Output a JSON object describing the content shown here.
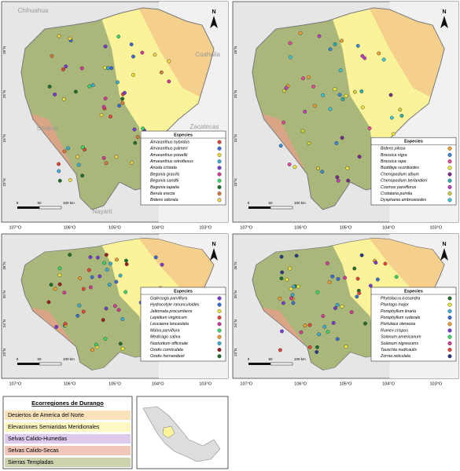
{
  "map_labels": {
    "states": [
      "Chihuahua",
      "Coahuila",
      "Zacatecas",
      "Sinaloa",
      "Nayarit"
    ],
    "north": "N",
    "scale": [
      "0",
      "50",
      "100 km"
    ],
    "lat": [
      "26°N",
      "25°N",
      "24°N",
      "23°N"
    ],
    "lon": [
      "107°O",
      "106°O",
      "105°O",
      "104°O",
      "103°O"
    ]
  },
  "panels": [
    {
      "legend_title": "Especies",
      "species": [
        {
          "name": "Amaranthus hybridus",
          "color": "#e8443a"
        },
        {
          "name": "Amaranthus palmeri",
          "color": "#3a6fd8"
        },
        {
          "name": "Amaranthus powellii",
          "color": "#f2e03a"
        },
        {
          "name": "Amaranthus retroflexus",
          "color": "#3ab0d8"
        },
        {
          "name": "Anoda cristata",
          "color": "#7a3ad8"
        },
        {
          "name": "Begonia gracilis",
          "color": "#d83a9a"
        },
        {
          "name": "Begonia sandtii",
          "color": "#3ad86a"
        },
        {
          "name": "Begonia tapatia",
          "color": "#1f6e2a"
        },
        {
          "name": "Berula erecta",
          "color": "#d87a3a"
        },
        {
          "name": "Bidens odorata",
          "color": "#f2d24a"
        }
      ]
    },
    {
      "legend_title": "Especies",
      "species": [
        {
          "name": "Bidens pilosa",
          "color": "#f0a030"
        },
        {
          "name": "Brassica nigra",
          "color": "#3a8ad8"
        },
        {
          "name": "Brassica rapa",
          "color": "#e84a9a"
        },
        {
          "name": "Buddleja scordioides",
          "color": "#f2e83a"
        },
        {
          "name": "Chenopodium album",
          "color": "#7a2a8a"
        },
        {
          "name": "Chenopodium berlandieri",
          "color": "#2ab0b0"
        },
        {
          "name": "Cosmos parviflorus",
          "color": "#c040c0"
        },
        {
          "name": "Crotalaria pumila",
          "color": "#d8d03a"
        },
        {
          "name": "Dysphania ambrosioides",
          "color": "#3ac8e0"
        }
      ]
    },
    {
      "legend_title": "Especies",
      "species": [
        {
          "name": "Galinsoga parviflora",
          "color": "#7a3ad8"
        },
        {
          "name": "Hydrocotyle ranunculoides",
          "color": "#3a6fd8"
        },
        {
          "name": "Jaltomata procumbens",
          "color": "#f2e83a"
        },
        {
          "name": "Lepidium virginicum",
          "color": "#e8443a"
        },
        {
          "name": "Leucaena lanceolata",
          "color": "#d83a9a"
        },
        {
          "name": "Malva parviflora",
          "color": "#3ad86a"
        },
        {
          "name": "Medicago sativa",
          "color": "#f0a030"
        },
        {
          "name": "Nasturtium officinale",
          "color": "#3ab0d8"
        },
        {
          "name": "Oxalis corniculata",
          "color": "#a02020"
        },
        {
          "name": "Oxalis hernandezii",
          "color": "#1f6e2a"
        }
      ]
    },
    {
      "legend_title": "Especies",
      "species": [
        {
          "name": "Phytolacca icosandra",
          "color": "#1f6e2a"
        },
        {
          "name": "Plantago major",
          "color": "#f2e83a"
        },
        {
          "name": "Porophyllum linaria",
          "color": "#3ab0d8"
        },
        {
          "name": "Porophyllum ruderale",
          "color": "#3a6fd8"
        },
        {
          "name": "Portulaca oleracea",
          "color": "#f0a030"
        },
        {
          "name": "Rumex crispus",
          "color": "#7a3ad8"
        },
        {
          "name": "Solanum americanum",
          "color": "#3ad86a"
        },
        {
          "name": "Solanum nigrescens",
          "color": "#d83a9a"
        },
        {
          "name": "Tauschia nudicaulis",
          "color": "#e8443a"
        },
        {
          "name": "Zornia reticulata",
          "color": "#2a3a8a"
        }
      ]
    }
  ],
  "ecoregions": {
    "title": "Ecorregiones de Durango",
    "items": [
      {
        "name": "Desiertos de America del Norte",
        "color": "#f5cf8c"
      },
      {
        "name": "Elevaciones Semiaridas Meridionales",
        "color": "#fbf39a"
      },
      {
        "name": "Selvas Calido-Humedas",
        "color": "#c7a6e0"
      },
      {
        "name": "Selvas Calido-Secas",
        "color": "#e6a08a"
      },
      {
        "name": "Sierras Templadas",
        "color": "#a9b77a"
      }
    ]
  }
}
